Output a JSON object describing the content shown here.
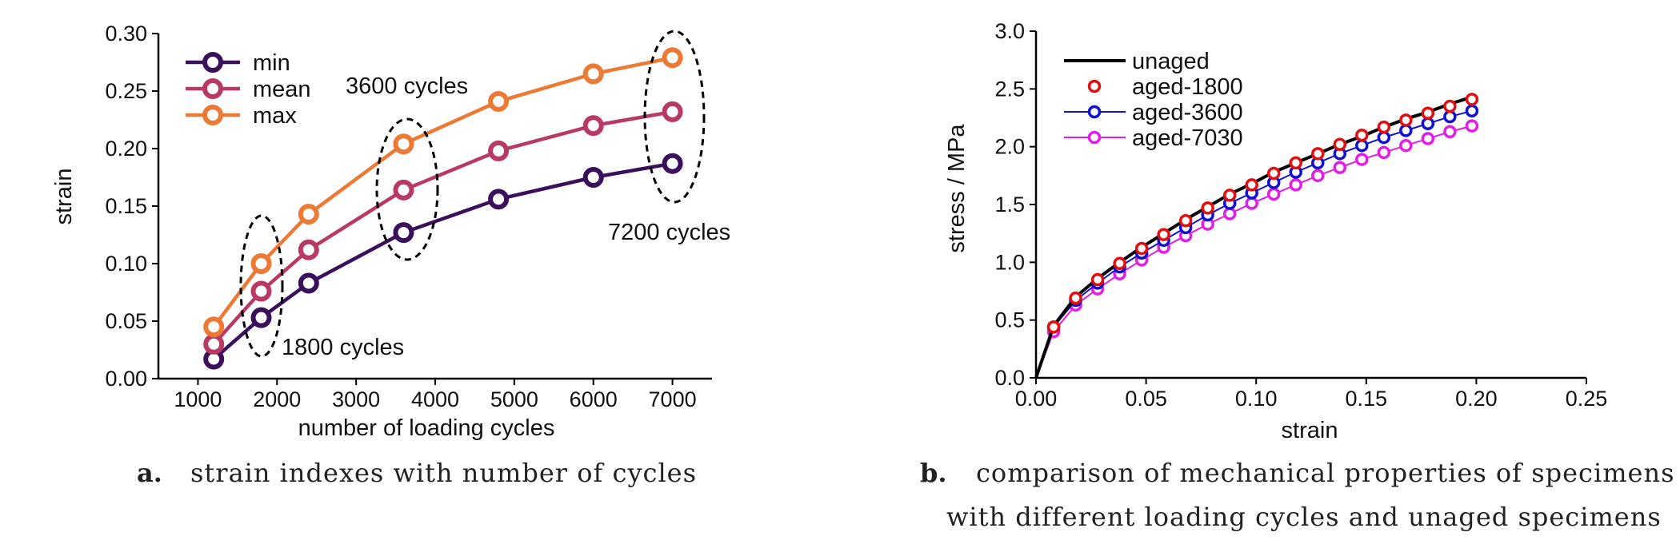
{
  "chart_data": [
    {
      "type": "line",
      "panel": "a",
      "caption_label": "a.",
      "caption": "strain indexes with number of cycles",
      "xlabel": "number of loading cycles",
      "ylabel": "strain",
      "xlim": [
        500,
        7500
      ],
      "ylim": [
        0,
        0.3
      ],
      "xticks": [
        "1000",
        "2000",
        "3000",
        "4000",
        "5000",
        "6000",
        "7000"
      ],
      "yticks": [
        "0.00",
        "0.05",
        "0.10",
        "0.15",
        "0.20",
        "0.25",
        "0.30"
      ],
      "legend_position": "top-left",
      "x": [
        1200,
        1800,
        2400,
        3600,
        4800,
        6000,
        7000
      ],
      "series": [
        {
          "name": "min",
          "color": "#3a0f5c",
          "values": [
            0.017,
            0.053,
            0.083,
            0.127,
            0.156,
            0.175,
            0.187
          ]
        },
        {
          "name": "mean",
          "color": "#b83a64",
          "values": [
            0.03,
            0.076,
            0.112,
            0.164,
            0.198,
            0.22,
            0.232
          ]
        },
        {
          "name": "max",
          "color": "#ec7a35",
          "values": [
            0.045,
            0.1,
            0.143,
            0.204,
            0.241,
            0.265,
            0.279
          ]
        }
      ],
      "annotations": [
        "1800 cycles",
        "3600 cycles",
        "7200 cycles"
      ]
    },
    {
      "type": "line",
      "panel": "b",
      "caption_label": "b.",
      "caption_line1": "comparison of mechanical properties of specimens",
      "caption_line2": "with different loading cycles and unaged specimens",
      "xlabel": "strain",
      "ylabel": "stress / MPa",
      "xlim": [
        0,
        0.25
      ],
      "ylim": [
        0,
        3.0
      ],
      "xticks": [
        "0.00",
        "0.05",
        "0.10",
        "0.15",
        "0.20",
        "0.25"
      ],
      "yticks": [
        "0.0",
        "0.5",
        "1.0",
        "1.5",
        "2.0",
        "2.5",
        "3.0"
      ],
      "legend_position": "top-left",
      "x": [
        0,
        0.008,
        0.018,
        0.028,
        0.038,
        0.048,
        0.058,
        0.068,
        0.078,
        0.088,
        0.098,
        0.108,
        0.118,
        0.128,
        0.138,
        0.148,
        0.158,
        0.168,
        0.178,
        0.188,
        0.198
      ],
      "series": [
        {
          "name": "unaged",
          "color": "#000000",
          "style": "line",
          "values": [
            0,
            0.45,
            0.7,
            0.86,
            1.0,
            1.13,
            1.25,
            1.37,
            1.48,
            1.59,
            1.68,
            1.78,
            1.86,
            1.94,
            2.02,
            2.09,
            2.17,
            2.24,
            2.3,
            2.37,
            2.43
          ]
        },
        {
          "name": "aged-1800",
          "color": "#e01010",
          "style": "markers",
          "values": [
            0,
            0.44,
            0.69,
            0.85,
            0.99,
            1.12,
            1.24,
            1.36,
            1.47,
            1.58,
            1.67,
            1.77,
            1.86,
            1.94,
            2.02,
            2.1,
            2.17,
            2.23,
            2.29,
            2.35,
            2.41
          ]
        },
        {
          "name": "aged-3600",
          "color": "#1010d0",
          "style": "line+markers",
          "values": [
            0,
            0.44,
            0.67,
            0.82,
            0.96,
            1.08,
            1.19,
            1.3,
            1.41,
            1.51,
            1.6,
            1.69,
            1.78,
            1.86,
            1.94,
            2.01,
            2.08,
            2.14,
            2.2,
            2.26,
            2.31
          ]
        },
        {
          "name": "aged-7030",
          "color": "#e020e0",
          "style": "line+markers",
          "values": [
            0,
            0.4,
            0.63,
            0.77,
            0.9,
            1.02,
            1.13,
            1.23,
            1.33,
            1.42,
            1.51,
            1.59,
            1.67,
            1.75,
            1.82,
            1.89,
            1.95,
            2.01,
            2.07,
            2.13,
            2.18
          ]
        }
      ]
    }
  ]
}
